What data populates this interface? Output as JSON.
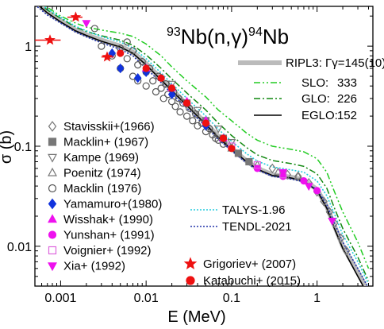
{
  "chart_data": {
    "type": "scatter",
    "title": {
      "pre_sup": "93",
      "pre": "Nb(n,",
      "gamma": "γ",
      "mid": ")",
      "post_sup": "94",
      "post": "Nb"
    },
    "xlabel": "E (MeV)",
    "ylabel": "σ (b)",
    "xscale": "log",
    "yscale": "log",
    "xlim": [
      0.0005,
      4.5
    ],
    "ylim": [
      0.004,
      2.5
    ],
    "xticks": [
      {
        "value": 0.001,
        "label": "0.001"
      },
      {
        "value": 0.01,
        "label": "0.01"
      },
      {
        "value": 0.1,
        "label": "0.1"
      },
      {
        "value": 1,
        "label": "1"
      }
    ],
    "yticks": [
      {
        "value": 0.01,
        "label": "0.01"
      },
      {
        "value": 0.1,
        "label": "0.1"
      },
      {
        "value": 1,
        "label": "1"
      }
    ],
    "grid": false,
    "colors": {
      "ripl3": "#bbbbbb",
      "slo": "#22cc22",
      "glo": "#118811",
      "eglo": "#000000",
      "talys": "#22ccdd",
      "tendl": "#2233aa",
      "red": "#ee1111",
      "magenta": "#ee11ee",
      "blue": "#1133dd",
      "pink": "#dd66dd",
      "gray": "#777777"
    },
    "curves": [
      {
        "key": "ripl3",
        "name": "RIPL3:",
        "gamma_text": "Γγ=145(10)",
        "value_label": "",
        "style": "gray-thick",
        "x": [
          0.0005,
          0.0007,
          0.001,
          0.0015,
          0.002,
          0.003,
          0.005,
          0.007,
          0.01,
          0.015,
          0.02,
          0.03,
          0.05,
          0.07,
          0.1,
          0.15,
          0.2,
          0.3,
          0.5,
          0.7,
          1.0,
          1.3,
          1.6,
          2.0,
          3.0,
          4.0
        ],
        "y": [
          2.8,
          2.2,
          1.8,
          1.45,
          1.3,
          1.15,
          1.0,
          0.87,
          0.67,
          0.47,
          0.37,
          0.26,
          0.17,
          0.125,
          0.095,
          0.071,
          0.06,
          0.052,
          0.049,
          0.046,
          0.037,
          0.025,
          0.016,
          0.01,
          0.0055,
          0.0035
        ]
      },
      {
        "key": "slo",
        "name": "SLO:",
        "value_label": "333",
        "style": "dash-dot-dot",
        "x": [
          0.0005,
          0.0007,
          0.001,
          0.0015,
          0.002,
          0.003,
          0.005,
          0.007,
          0.01,
          0.015,
          0.02,
          0.03,
          0.05,
          0.07,
          0.1,
          0.15,
          0.2,
          0.3,
          0.5,
          0.7,
          1.0,
          1.3,
          1.6,
          2.0,
          3.0,
          4.0
        ],
        "y": [
          3.0,
          2.45,
          2.0,
          1.7,
          1.55,
          1.45,
          1.35,
          1.25,
          1.05,
          0.8,
          0.62,
          0.45,
          0.31,
          0.23,
          0.18,
          0.135,
          0.115,
          0.1,
          0.093,
          0.088,
          0.075,
          0.055,
          0.035,
          0.022,
          0.011,
          0.006
        ]
      },
      {
        "key": "glo",
        "name": "GLO:",
        "value_label": "226",
        "style": "dash-dot",
        "x": [
          0.0005,
          0.0007,
          0.001,
          0.0015,
          0.002,
          0.003,
          0.005,
          0.007,
          0.01,
          0.015,
          0.02,
          0.03,
          0.05,
          0.07,
          0.1,
          0.15,
          0.2,
          0.3,
          0.5,
          0.7,
          1.0,
          1.3,
          1.6,
          2.0,
          3.0,
          4.0
        ],
        "y": [
          2.9,
          2.3,
          1.9,
          1.55,
          1.4,
          1.27,
          1.15,
          1.02,
          0.82,
          0.6,
          0.47,
          0.34,
          0.23,
          0.17,
          0.128,
          0.097,
          0.082,
          0.072,
          0.067,
          0.063,
          0.053,
          0.038,
          0.024,
          0.015,
          0.0078,
          0.0045
        ]
      },
      {
        "key": "eglo",
        "name": "EGLO:",
        "value_label": "152",
        "style": "solid",
        "x": [
          0.0005,
          0.0007,
          0.001,
          0.0015,
          0.002,
          0.003,
          0.005,
          0.007,
          0.01,
          0.015,
          0.02,
          0.03,
          0.05,
          0.07,
          0.1,
          0.15,
          0.2,
          0.3,
          0.5,
          0.7,
          1.0,
          1.3,
          1.6,
          2.0,
          3.0,
          4.0
        ],
        "y": [
          2.75,
          2.15,
          1.75,
          1.42,
          1.28,
          1.12,
          0.98,
          0.85,
          0.65,
          0.46,
          0.36,
          0.255,
          0.165,
          0.122,
          0.093,
          0.07,
          0.059,
          0.051,
          0.048,
          0.045,
          0.036,
          0.024,
          0.015,
          0.0095,
          0.005,
          0.0032
        ]
      },
      {
        "key": "talys",
        "name": "TALYS-1.96",
        "value_label": "",
        "style": "dotted-cyan",
        "x": [
          0.0005,
          0.0007,
          0.001,
          0.0015,
          0.002,
          0.003,
          0.005,
          0.007,
          0.01,
          0.015,
          0.02,
          0.03,
          0.05,
          0.07,
          0.1,
          0.15,
          0.2,
          0.3,
          0.5,
          0.7,
          1.0,
          1.3,
          1.6,
          2.0,
          3.0,
          4.0
        ],
        "y": [
          2.95,
          2.35,
          1.95,
          1.58,
          1.42,
          1.25,
          1.1,
          0.96,
          0.75,
          0.54,
          0.42,
          0.3,
          0.2,
          0.148,
          0.112,
          0.084,
          0.071,
          0.062,
          0.058,
          0.055,
          0.045,
          0.032,
          0.021,
          0.013,
          0.007,
          0.0042
        ]
      },
      {
        "key": "tendl",
        "name": "TENDL-2021",
        "value_label": "",
        "style": "dotted-blue",
        "x": [
          0.0005,
          0.0007,
          0.001,
          0.0015,
          0.002,
          0.003,
          0.005,
          0.007,
          0.01,
          0.015,
          0.02,
          0.03,
          0.05,
          0.07,
          0.1,
          0.15,
          0.2,
          0.3,
          0.5,
          0.7,
          1.0,
          1.3,
          1.6,
          2.0,
          3.0,
          4.0
        ],
        "y": [
          2.6,
          2.05,
          1.7,
          1.38,
          1.24,
          1.08,
          0.93,
          0.8,
          0.6,
          0.43,
          0.335,
          0.24,
          0.157,
          0.117,
          0.09,
          0.068,
          0.058,
          0.05,
          0.047,
          0.044,
          0.037,
          0.026,
          0.017,
          0.011,
          0.006,
          0.0038
        ]
      }
    ],
    "series": [
      {
        "name": "Stavisskii+(1966)",
        "marker": "diamond-open",
        "color": "#777777",
        "x": [
          0.3,
          0.45,
          0.6,
          0.8,
          1.0,
          1.2,
          1.4,
          1.6,
          1.9,
          2.2
        ],
        "y": [
          0.06,
          0.052,
          0.05,
          0.043,
          0.035,
          0.028,
          0.022,
          0.017,
          0.012,
          0.009
        ]
      },
      {
        "name": "Macklin+ (1967)",
        "marker": "square-filled",
        "color": "#777777",
        "x": [
          0.03,
          0.05,
          0.08,
          0.12,
          0.16
        ],
        "y": [
          0.27,
          0.18,
          0.12,
          0.085,
          0.07
        ]
      },
      {
        "name": "Kampe (1969)",
        "marker": "triangle-down-open",
        "color": "#777777",
        "x": [
          0.02,
          0.04,
          0.07,
          0.1
        ],
        "y": [
          0.42,
          0.23,
          0.15,
          0.11
        ]
      },
      {
        "name": "Poenitz (1974)",
        "marker": "triangle-up-open",
        "color": "#777777",
        "x": [
          0.05,
          0.1,
          0.2,
          0.35,
          0.6
        ],
        "y": [
          0.17,
          0.095,
          0.065,
          0.055,
          0.05
        ]
      },
      {
        "name": "Macklin (1976)",
        "marker": "circle-open",
        "color": "#555555",
        "x": [
          0.0025,
          0.003,
          0.004,
          0.005,
          0.005,
          0.006,
          0.006,
          0.007,
          0.007,
          0.008,
          0.008,
          0.009,
          0.01,
          0.01,
          0.011,
          0.012,
          0.013,
          0.014,
          0.015,
          0.016,
          0.017,
          0.018,
          0.02,
          0.021,
          0.022,
          0.024,
          0.025,
          0.027,
          0.03,
          0.032,
          0.035,
          0.038,
          0.04,
          0.045,
          0.05,
          0.055,
          0.06,
          0.065,
          0.07,
          0.08
        ],
        "y": [
          1.5,
          1.0,
          0.8,
          0.95,
          0.6,
          0.75,
          1.1,
          0.5,
          0.9,
          0.65,
          0.45,
          0.7,
          0.55,
          0.4,
          0.6,
          0.45,
          0.35,
          0.5,
          0.38,
          0.3,
          0.42,
          0.33,
          0.28,
          0.35,
          0.25,
          0.3,
          0.22,
          0.27,
          0.2,
          0.24,
          0.18,
          0.21,
          0.16,
          0.17,
          0.14,
          0.15,
          0.13,
          0.12,
          0.115,
          0.105
        ]
      },
      {
        "name": "Yamamuro+(1980)",
        "marker": "diamond-filled",
        "color": "#1133dd",
        "x": [
          0.004,
          0.005,
          0.008,
          0.01,
          0.02,
          0.05
        ],
        "y": [
          0.85,
          0.6,
          0.48,
          0.55,
          0.33,
          0.16
        ]
      },
      {
        "name": "Wisshak+ (1990)",
        "marker": "triangle-up-filled",
        "color": "#ee11ee",
        "x": [
          0.01,
          0.02,
          0.03,
          0.05,
          0.08
        ],
        "y": [
          0.6,
          0.38,
          0.28,
          0.18,
          0.12
        ]
      },
      {
        "name": "Yunshan+ (1991)",
        "marker": "circle-filled",
        "color": "#ee11ee",
        "x": [
          0.2,
          0.4,
          0.7,
          1.0
        ],
        "y": [
          0.06,
          0.05,
          0.045,
          0.036
        ]
      },
      {
        "name": "Voignier+ (1992)",
        "marker": "square-open",
        "color": "#dd66dd",
        "x": [
          0.1,
          0.2,
          0.4
        ],
        "y": [
          0.1,
          0.065,
          0.052
        ]
      },
      {
        "name": "Xia+ (1992)",
        "marker": "triangle-down-filled",
        "color": "#ee11ee",
        "x": [
          0.002,
          0.4,
          0.8,
          1.5
        ],
        "y": [
          1.7,
          0.055,
          0.04,
          0.018
        ]
      },
      {
        "name": "Grigoriev+ (2007)",
        "marker": "star-filled",
        "color": "#ee1111",
        "x": [
          0.00075,
          0.0015,
          0.0035
        ],
        "y": [
          1.15,
          1.95,
          0.78
        ],
        "xerr_lo": [
          0.0005,
          0.0012,
          0.003
        ],
        "xerr_hi": [
          0.001,
          0.0018,
          0.0042
        ]
      },
      {
        "name": "Katabuchi+ (2015)",
        "marker": "circle-filled",
        "color": "#ee1111",
        "x": [
          0.005,
          0.01,
          0.015,
          0.02,
          0.03,
          0.05,
          0.08,
          0.1
        ],
        "y": [
          0.85,
          0.6,
          0.48,
          0.38,
          0.27,
          0.17,
          0.12,
          0.095
        ]
      }
    ]
  }
}
